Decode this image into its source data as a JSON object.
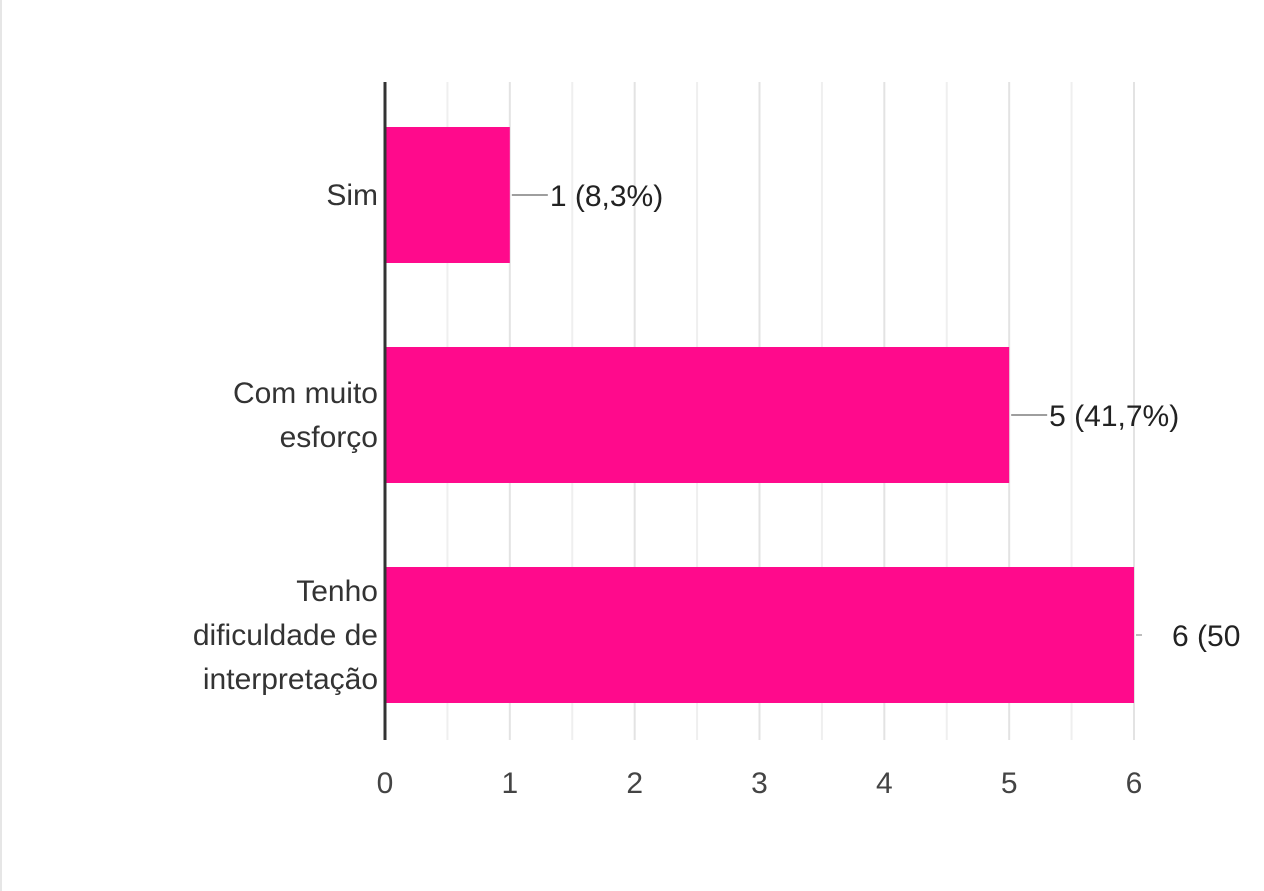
{
  "chart_data": {
    "type": "bar",
    "orientation": "horizontal",
    "categories": [
      [
        "Sim"
      ],
      [
        "Com muito",
        "esforço"
      ],
      [
        "Tenho",
        "dificuldade de",
        "interpretação"
      ]
    ],
    "values": [
      1,
      5,
      6
    ],
    "data_labels": [
      "1 (8,3%)",
      "5 (41,7%)",
      "6 (50"
    ],
    "xlim": [
      0,
      6
    ],
    "x_ticks": [
      0,
      1,
      2,
      3,
      4,
      5,
      6
    ],
    "grid": true,
    "bar_color": "#ff0a8c",
    "title": "",
    "xlabel": "",
    "ylabel": ""
  }
}
